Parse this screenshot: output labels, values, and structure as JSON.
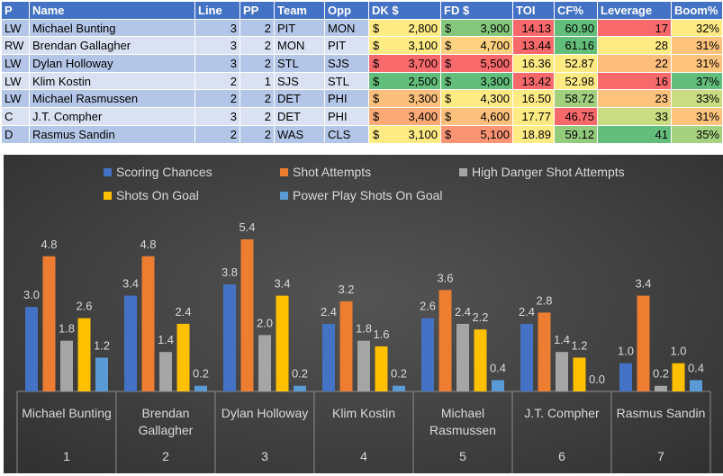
{
  "table": {
    "headers": [
      "P",
      "Name",
      "Line",
      "PP",
      "Team",
      "Opp",
      "DK $",
      "FD $",
      "TOI",
      "CF%",
      "Leverage",
      "Boom%"
    ],
    "currency_symbol": "$",
    "rows": [
      {
        "pos": "LW",
        "name": "Michael Bunting",
        "line": "3",
        "pp": "2",
        "team": "PIT",
        "opp": "MON",
        "dk": "2,800",
        "fd": "3,900",
        "toi": "14.13",
        "cf": "60.90",
        "leverage": "17",
        "boom": "32%"
      },
      {
        "pos": "RW",
        "name": "Brendan Gallagher",
        "line": "3",
        "pp": "2",
        "team": "MON",
        "opp": "PIT",
        "dk": "3,100",
        "fd": "4,700",
        "toi": "13.44",
        "cf": "61.16",
        "leverage": "28",
        "boom": "31%"
      },
      {
        "pos": "LW",
        "name": "Dylan Holloway",
        "line": "3",
        "pp": "2",
        "team": "STL",
        "opp": "SJS",
        "dk": "3,700",
        "fd": "5,500",
        "toi": "16.36",
        "cf": "52.87",
        "leverage": "22",
        "boom": "31%"
      },
      {
        "pos": "LW",
        "name": "Klim Kostin",
        "line": "2",
        "pp": "1",
        "team": "SJS",
        "opp": "STL",
        "dk": "2,500",
        "fd": "3,300",
        "toi": "13.42",
        "cf": "52.98",
        "leverage": "16",
        "boom": "37%"
      },
      {
        "pos": "LW",
        "name": "Michael Rasmussen",
        "line": "2",
        "pp": "2",
        "team": "DET",
        "opp": "PHI",
        "dk": "3,300",
        "fd": "4,300",
        "toi": "16.50",
        "cf": "58.72",
        "leverage": "23",
        "boom": "33%"
      },
      {
        "pos": "C",
        "name": "J.T. Compher",
        "line": "3",
        "pp": "2",
        "team": "DET",
        "opp": "PHI",
        "dk": "3,400",
        "fd": "4,600",
        "toi": "17.77",
        "cf": "46.75",
        "leverage": "33",
        "boom": "31%"
      },
      {
        "pos": "D",
        "name": "Rasmus Sandin",
        "line": "2",
        "pp": "2",
        "team": "WAS",
        "opp": "CLS",
        "dk": "3,100",
        "fd": "5,100",
        "toi": "18.89",
        "cf": "59.12",
        "leverage": "41",
        "boom": "35%"
      }
    ],
    "cell_colors": {
      "dk": [
        "#ffeb84",
        "#ffeb84",
        "#f8696b",
        "#63be7b",
        "#fdc07c",
        "#fbaa77",
        "#ffeb84"
      ],
      "fd": [
        "#85c87d",
        "#fed280",
        "#f8696b",
        "#63be7b",
        "#ffeb84",
        "#fdc17d",
        "#fa9473"
      ],
      "toi": [
        "#f8696b",
        "#f8696b",
        "#ffeb84",
        "#f8696b",
        "#ffeb84",
        "#ffeb84",
        "#ffeb84"
      ],
      "cf": [
        "#63be7b",
        "#63be7b",
        "#ffeb84",
        "#ffeb84",
        "#a2d07f",
        "#f8696b",
        "#93cb7d"
      ],
      "leverage": [
        "#f8696b",
        "#ffeb84",
        "#fdbd7b",
        "#f8696b",
        "#fdc37d",
        "#c9dc81",
        "#63be7b"
      ],
      "boom": [
        "#ffeb84",
        "#fdc37d",
        "#fdc37d",
        "#63be7b",
        "#c9dc81",
        "#fdc37d",
        "#a6d27f"
      ]
    }
  },
  "chart_data": {
    "type": "bar",
    "title": "",
    "xlabel": "",
    "ylabel": "",
    "ylim": [
      0,
      6
    ],
    "categories": [
      "Michael Bunting",
      "Brendan Gallagher",
      "Dylan Holloway",
      "Klim Kostin",
      "Michael Rasmussen",
      "J.T. Compher",
      "Rasmus Sandin"
    ],
    "category_numbers": [
      "1",
      "2",
      "3",
      "4",
      "5",
      "6",
      "7"
    ],
    "series": [
      {
        "name": "Scoring Chances",
        "color": "#4472c4",
        "values": [
          3.0,
          3.4,
          3.8,
          2.4,
          2.6,
          2.4,
          1.0
        ]
      },
      {
        "name": "Shot Attempts",
        "color": "#ed7d31",
        "values": [
          4.8,
          4.8,
          5.4,
          3.2,
          3.6,
          2.8,
          3.4
        ]
      },
      {
        "name": "High Danger Shot Attempts",
        "color": "#a5a5a5",
        "values": [
          1.8,
          1.4,
          2.0,
          1.8,
          2.4,
          1.4,
          0.2
        ]
      },
      {
        "name": "Shots On Goal",
        "color": "#ffc000",
        "values": [
          2.6,
          2.4,
          3.4,
          1.6,
          2.2,
          1.2,
          1.0
        ]
      },
      {
        "name": "Power Play Shots On Goal",
        "color": "#5b9bd5",
        "values": [
          1.2,
          0.2,
          0.2,
          0.2,
          0.4,
          0.0,
          0.4
        ]
      }
    ],
    "legend_position": "top",
    "grid": false
  }
}
